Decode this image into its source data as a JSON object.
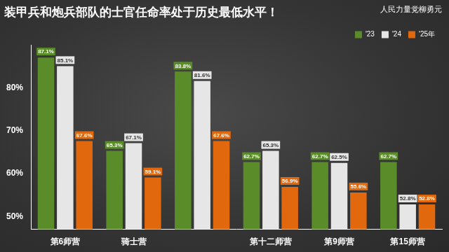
{
  "chart_data": {
    "type": "bar",
    "title": "装甲兵和炮兵部队的士官任命率处于历史最低水平！",
    "annotations": [
      "人民力量党柳勇元"
    ],
    "categories": [
      "第6师营",
      "骑士营",
      null,
      "第十二师营",
      "第9师营",
      "第15师营"
    ],
    "series": [
      {
        "name": "'23",
        "color": "#5b8c2a",
        "values": [
          87.1,
          65.3,
          83.8,
          62.7,
          62.7,
          62.7
        ],
        "value_labels": [
          "87.1%",
          "65.3%",
          "83.8%",
          "62.7%",
          "62.7%",
          "62.7%"
        ]
      },
      {
        "name": "'24",
        "color": "#e6e6e6",
        "values": [
          85.1,
          67.1,
          81.6,
          65.3,
          62.5,
          52.8
        ],
        "value_labels": [
          "85.1%",
          "67.1%",
          "81.6%",
          "65.3%",
          "62.5%",
          "52.8%"
        ]
      },
      {
        "name": "'25年",
        "color": "#e2680e",
        "values": [
          67.6,
          59.1,
          67.6,
          56.9,
          55.6,
          52.8
        ],
        "value_labels": [
          "67.6%",
          "59.1%",
          "67.6%",
          "56.9%",
          "55.6%",
          "52.8%"
        ]
      }
    ],
    "ylim": [
      47,
      90
    ],
    "yticks": [
      {
        "value": 50,
        "label": "50%"
      },
      {
        "value": 60,
        "label": "60%"
      },
      {
        "value": 70,
        "label": "70%"
      },
      {
        "value": 80,
        "label": "80%"
      }
    ],
    "grid": false,
    "legend": "top-right",
    "data_labels": true
  }
}
